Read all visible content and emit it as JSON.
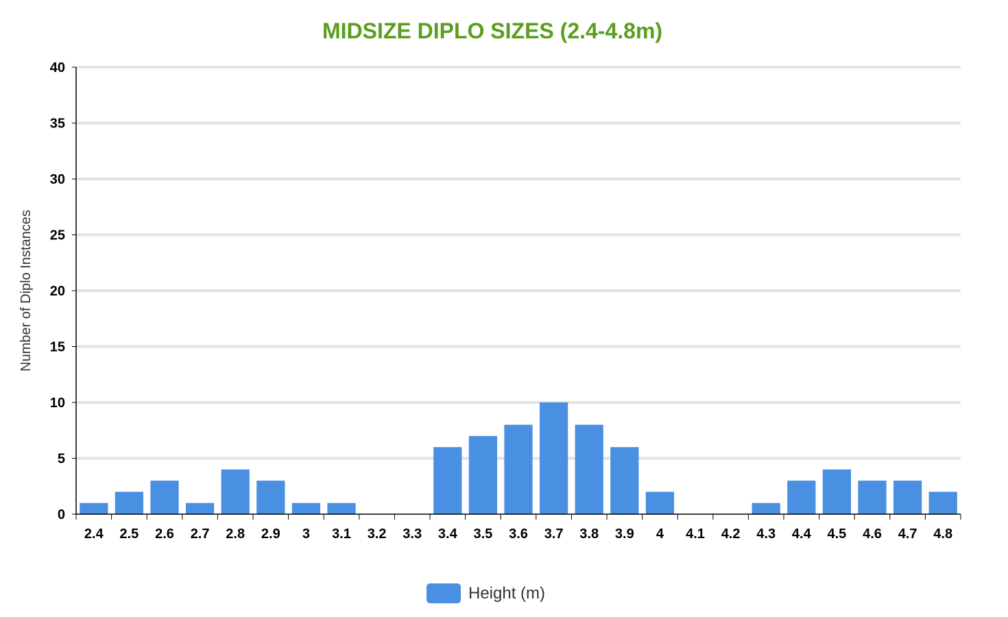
{
  "chart_data": {
    "type": "bar",
    "title": "MIDSIZE DIPLO SIZES (2.4-4.8m)",
    "title_color": "#5a9e1e",
    "xlabel": "",
    "ylabel": "Number of Diplo Instances",
    "ylim": [
      0,
      40
    ],
    "y_ticks": [
      0,
      5,
      10,
      15,
      20,
      25,
      30,
      35,
      40
    ],
    "grid": true,
    "legend_position": "bottom-center",
    "categories": [
      "2.4",
      "2.5",
      "2.6",
      "2.7",
      "2.8",
      "2.9",
      "3",
      "3.1",
      "3.2",
      "3.3",
      "3.4",
      "3.5",
      "3.6",
      "3.7",
      "3.8",
      "3.9",
      "4",
      "4.1",
      "4.2",
      "4.3",
      "4.4",
      "4.5",
      "4.6",
      "4.7",
      "4.8"
    ],
    "series": [
      {
        "name": "Height (m)",
        "color": "#4a90e2",
        "values": [
          1,
          2,
          3,
          1,
          4,
          3,
          1,
          1,
          0,
          0,
          6,
          7,
          8,
          10,
          8,
          6,
          2,
          0,
          0,
          1,
          3,
          4,
          3,
          3,
          2
        ]
      }
    ]
  }
}
